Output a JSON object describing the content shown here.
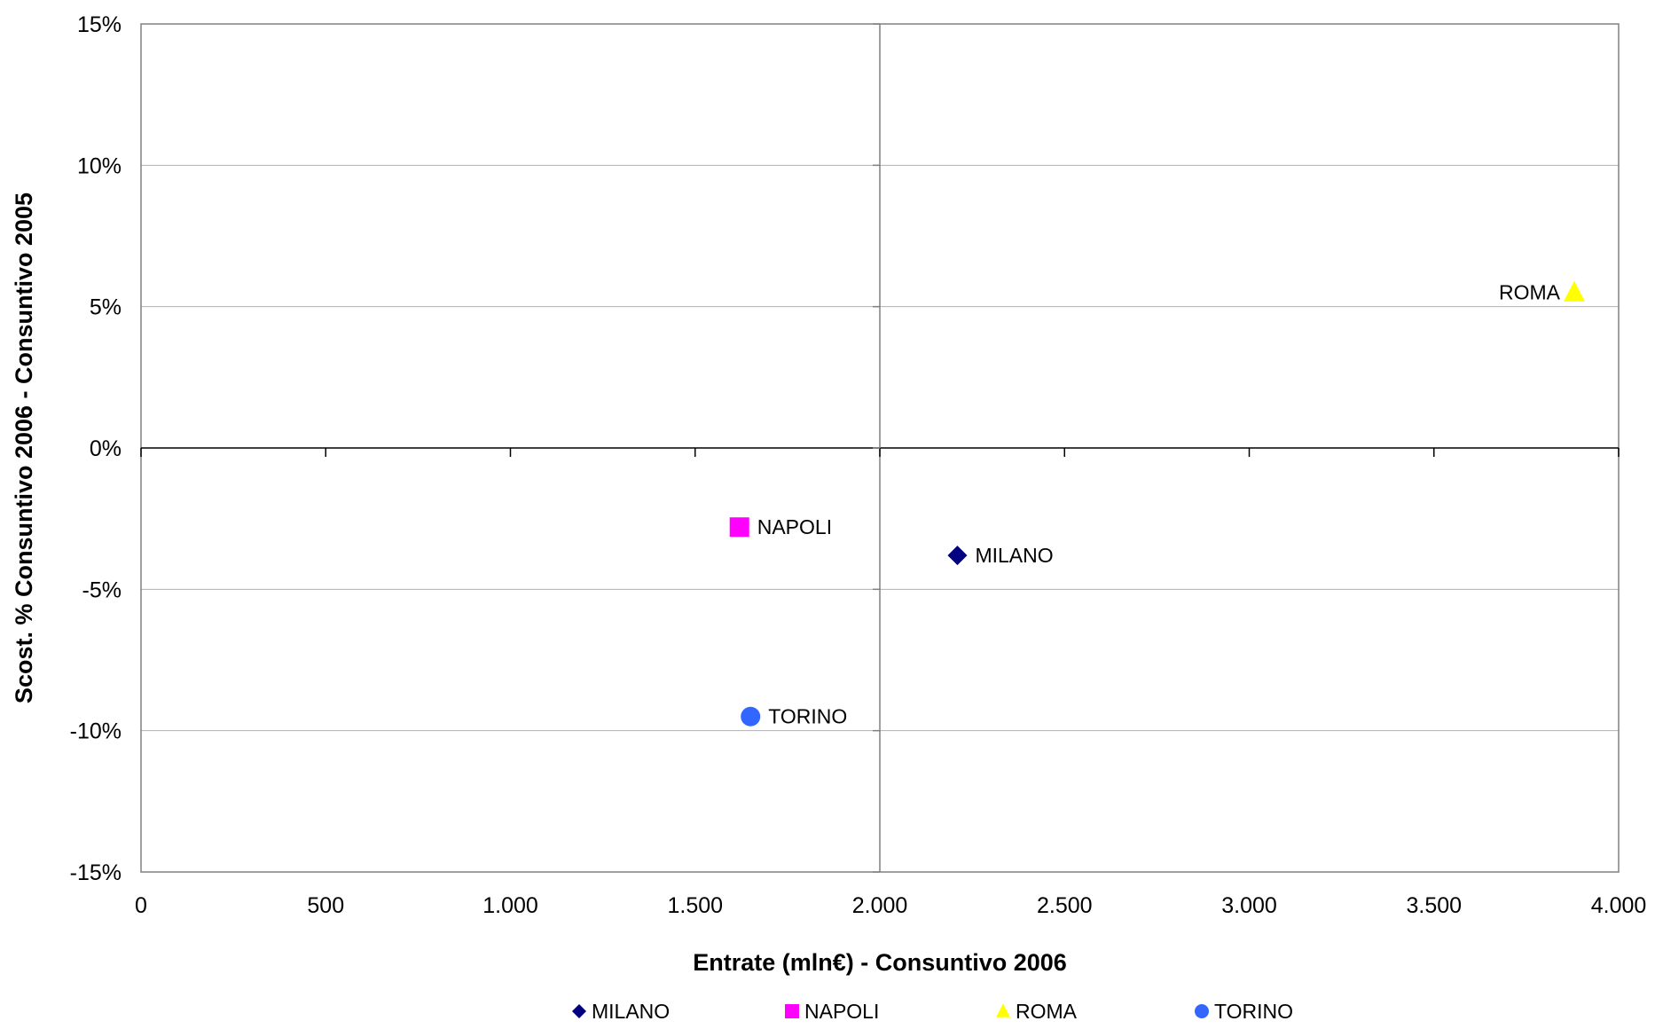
{
  "chart_data": {
    "type": "scatter",
    "title": "",
    "xlabel": "Entrate (mln€) - Consuntivo 2006",
    "ylabel": "Scost. % Consuntivo 2006 - Consuntivo 2005",
    "xlim": [
      0,
      4000
    ],
    "ylim": [
      -15,
      15
    ],
    "xticks": [
      0,
      500,
      1000,
      1500,
      2000,
      2500,
      3000,
      3500,
      4000
    ],
    "xtick_labels": [
      "0",
      "500",
      "1.000",
      "1.500",
      "2.000",
      "2.500",
      "3.000",
      "3.500",
      "4.000"
    ],
    "yticks": [
      -15,
      -10,
      -5,
      0,
      5,
      10,
      15
    ],
    "ytick_labels": [
      "-15%",
      "-10%",
      "-5%",
      "0%",
      "5%",
      "10%",
      "15%"
    ],
    "grid": "horizontal",
    "legend_position": "bottom",
    "series": [
      {
        "name": "MILANO",
        "marker": "diamond",
        "color": "#000080",
        "x": [
          2210
        ],
        "y": [
          -3.8
        ],
        "label": "MILANO"
      },
      {
        "name": "NAPOLI",
        "marker": "square",
        "color": "#FF00FF",
        "x": [
          1620
        ],
        "y": [
          -2.8
        ],
        "label": "NAPOLI"
      },
      {
        "name": "ROMA",
        "marker": "triangle",
        "color": "#FFFF00",
        "x": [
          3880
        ],
        "y": [
          5.5
        ],
        "label": "ROMA"
      },
      {
        "name": "TORINO",
        "marker": "circle",
        "color": "#3366FF",
        "x": [
          1650
        ],
        "y": [
          -9.5
        ],
        "label": "TORINO"
      }
    ]
  }
}
